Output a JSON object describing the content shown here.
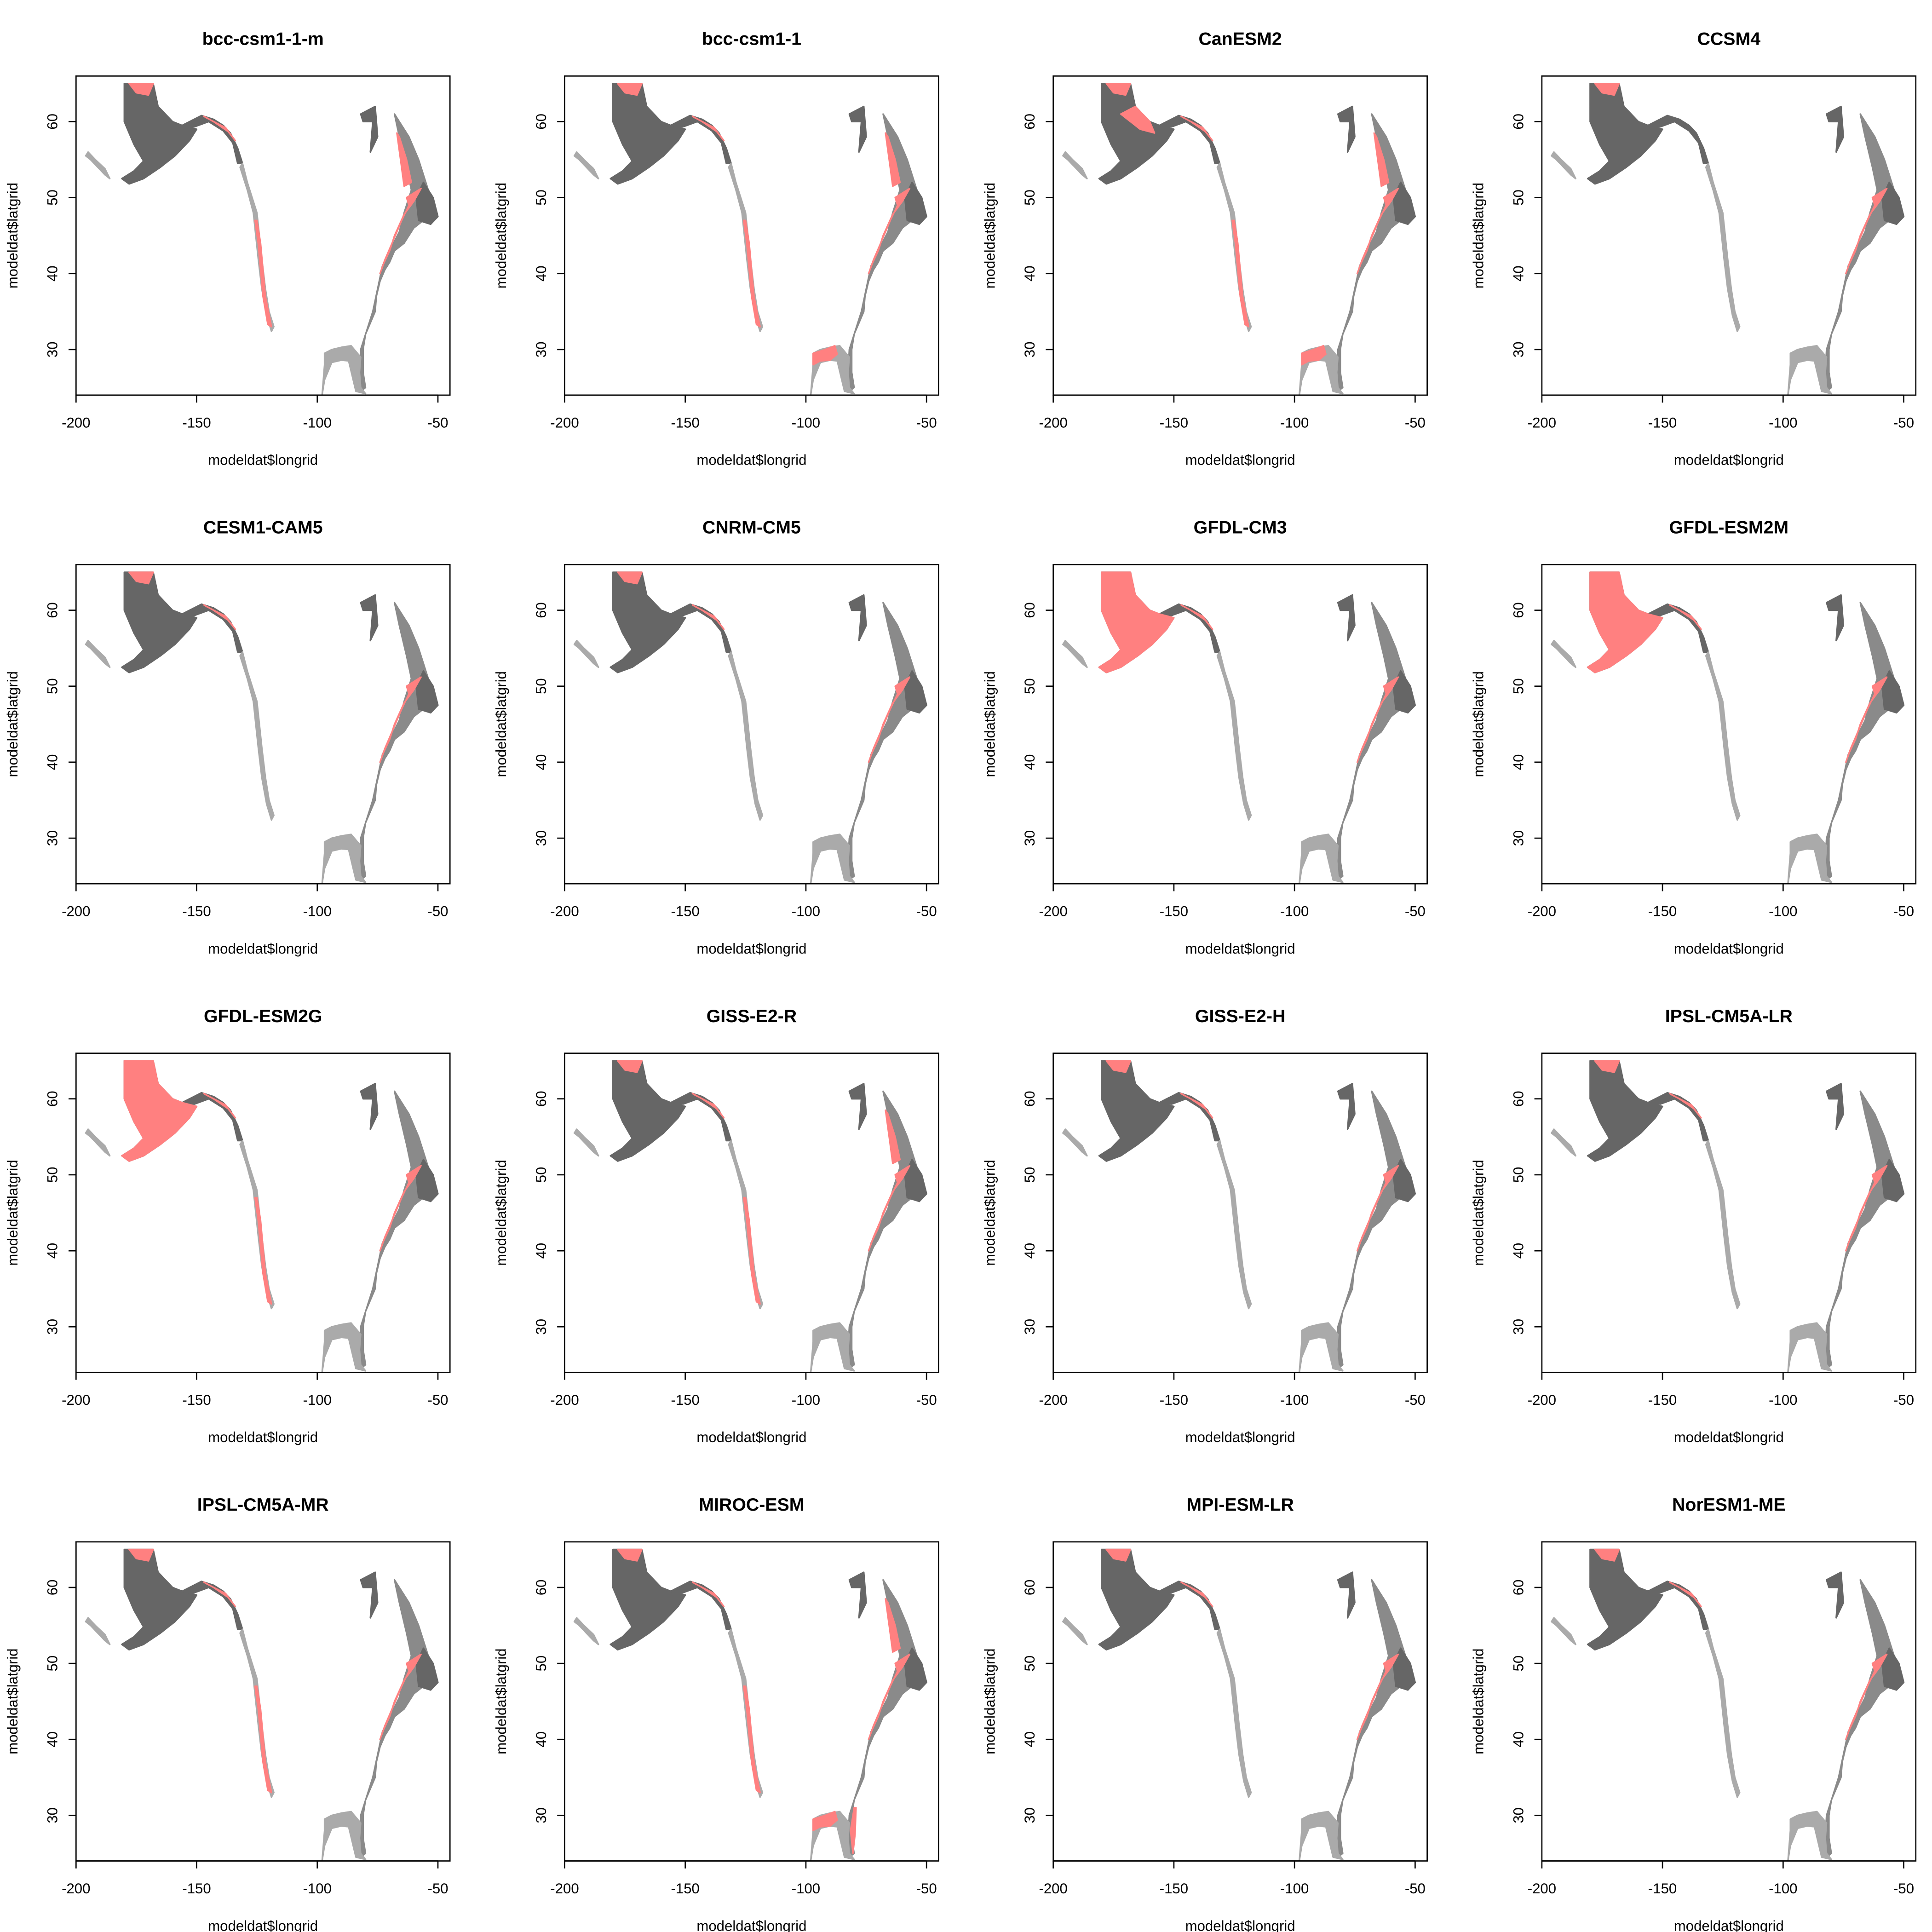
{
  "chart_data": {
    "type": "scatter",
    "xlabel": "modeldat$longrid",
    "ylabel": "modeldat$latgrid",
    "xlim": [
      -200,
      -45
    ],
    "ylim": [
      24,
      66
    ],
    "x_ticks": [
      -200,
      -150,
      -100,
      -50
    ],
    "y_ticks": [
      30,
      40,
      50,
      60
    ],
    "colors": {
      "base_dark": "#666666",
      "base_light": "#aaaaaa",
      "highlight": "#ff8080"
    },
    "panels": [
      {
        "title": "bcc-csm1-1-m",
        "highlight": [
          "pac_coast_n",
          "pac_coast_s",
          "atl_edge",
          "atl_north",
          "bering_n"
        ]
      },
      {
        "title": "bcc-csm1-1",
        "highlight": [
          "pac_coast_n",
          "pac_coast_s",
          "atl_edge",
          "atl_north",
          "bering_n",
          "gulf"
        ]
      },
      {
        "title": "CanESM2",
        "highlight": [
          "pac_coast_n",
          "pac_coast_s",
          "atl_edge",
          "atl_north",
          "bering_n",
          "gulf",
          "bering_e"
        ]
      },
      {
        "title": "CCSM4",
        "highlight": [
          "atl_edge",
          "bering_n"
        ]
      },
      {
        "title": "CESM1-CAM5",
        "highlight": [
          "atl_edge",
          "bering_n",
          "pac_coast_n"
        ]
      },
      {
        "title": "CNRM-CM5",
        "highlight": [
          "atl_edge",
          "bering_n",
          "pac_coast_n"
        ]
      },
      {
        "title": "GFDL-CM3",
        "highlight": [
          "bering_full",
          "atl_edge",
          "pac_coast_n"
        ]
      },
      {
        "title": "GFDL-ESM2M",
        "highlight": [
          "bering_full",
          "atl_edge",
          "pac_coast_n"
        ]
      },
      {
        "title": "GFDL-ESM2G",
        "highlight": [
          "bering_full",
          "atl_edge",
          "pac_coast_n",
          "pac_coast_s"
        ]
      },
      {
        "title": "GISS-E2-R",
        "highlight": [
          "atl_edge",
          "bering_n",
          "pac_coast_n",
          "pac_coast_s",
          "atl_north"
        ]
      },
      {
        "title": "GISS-E2-H",
        "highlight": [
          "atl_edge",
          "bering_n",
          "pac_coast_n"
        ]
      },
      {
        "title": "IPSL-CM5A-LR",
        "highlight": [
          "atl_edge",
          "bering_n",
          "pac_coast_n"
        ]
      },
      {
        "title": "IPSL-CM5A-MR",
        "highlight": [
          "atl_edge",
          "bering_n",
          "pac_coast_n",
          "pac_coast_s"
        ]
      },
      {
        "title": "MIROC-ESM",
        "highlight": [
          "atl_edge",
          "bering_n",
          "pac_coast_n",
          "pac_coast_s",
          "atl_north",
          "gulf",
          "atl_south"
        ]
      },
      {
        "title": "MPI-ESM-LR",
        "highlight": [
          "atl_edge",
          "bering_n",
          "pac_coast_n"
        ]
      },
      {
        "title": "NorESM1-ME",
        "highlight": [
          "atl_edge",
          "bering_n",
          "pac_coast_n"
        ]
      }
    ],
    "regions": {
      "bering_full": [
        [
          -180,
          65
        ],
        [
          -168,
          65
        ],
        [
          -166,
          62
        ],
        [
          -160,
          60
        ],
        [
          -156,
          59.5
        ],
        [
          -150,
          59
        ],
        [
          -153,
          57.5
        ],
        [
          -159,
          55.5
        ],
        [
          -165,
          54
        ],
        [
          -172,
          52.5
        ],
        [
          -178,
          51.8
        ],
        [
          -181,
          52.5
        ],
        [
          -176,
          53.5
        ],
        [
          -172,
          54.8
        ],
        [
          -176,
          57
        ],
        [
          -180,
          60
        ]
      ],
      "bering_n": [
        [
          -178,
          65
        ],
        [
          -168,
          65
        ],
        [
          -170,
          63.5
        ],
        [
          -175,
          63.8
        ]
      ],
      "bering_e": [
        [
          -172,
          61
        ],
        [
          -164,
          59
        ],
        [
          -158,
          58.5
        ],
        [
          -160,
          60
        ],
        [
          -166,
          62
        ]
      ],
      "pac_coast_n": [
        [
          -146,
          60.5
        ],
        [
          -138,
          59.2
        ],
        [
          -134,
          57.5
        ],
        [
          -137,
          58.7
        ],
        [
          -143,
          60
        ],
        [
          -147,
          60.7
        ]
      ],
      "pac_coast_s": [
        [
          -125,
          47
        ],
        [
          -123.5,
          44
        ],
        [
          -121.5,
          37
        ],
        [
          -119,
          33
        ],
        [
          -120.5,
          33.3
        ],
        [
          -122.5,
          37
        ],
        [
          -124.5,
          44
        ],
        [
          -125.8,
          47
        ]
      ],
      "atl_edge": [
        [
          -63,
          50
        ],
        [
          -57,
          51.2
        ],
        [
          -60,
          49.5
        ],
        [
          -64,
          47.8
        ],
        [
          -68,
          45
        ],
        [
          -70,
          43
        ],
        [
          -72.5,
          41.3
        ],
        [
          -74,
          40
        ],
        [
          -72,
          41.8
        ],
        [
          -69,
          44
        ],
        [
          -65,
          47
        ],
        [
          -62,
          49
        ]
      ],
      "atl_north": [
        [
          -66,
          58
        ],
        [
          -63,
          55
        ],
        [
          -61,
          52
        ],
        [
          -64,
          51.5
        ],
        [
          -65.5,
          55
        ],
        [
          -67,
          58.5
        ]
      ],
      "gulf": [
        [
          -97,
          29.5
        ],
        [
          -92,
          30
        ],
        [
          -88,
          30.5
        ],
        [
          -87,
          29.4
        ],
        [
          -90,
          28.6
        ],
        [
          -94,
          28.5
        ],
        [
          -97,
          28
        ]
      ],
      "atl_south": [
        [
          -80,
          31
        ],
        [
          -81.5,
          28
        ],
        [
          -80.5,
          25
        ],
        [
          -79.6,
          27.5
        ],
        [
          -79.2,
          31
        ]
      ]
    },
    "base": {
      "bering": [
        [
          -180,
          65
        ],
        [
          -168,
          65
        ],
        [
          -166,
          62
        ],
        [
          -160,
          60
        ],
        [
          -156,
          59.5
        ],
        [
          -150,
          59
        ],
        [
          -153,
          57.5
        ],
        [
          -159,
          55.5
        ],
        [
          -165,
          54
        ],
        [
          -172,
          52.5
        ],
        [
          -178,
          51.8
        ],
        [
          -181,
          52.5
        ],
        [
          -176,
          53.5
        ],
        [
          -172,
          54.8
        ],
        [
          -176,
          57
        ],
        [
          -180,
          60
        ]
      ],
      "gulf_alaska": [
        [
          -156,
          59.5
        ],
        [
          -148,
          60.8
        ],
        [
          -143,
          60.3
        ],
        [
          -139,
          59.5
        ],
        [
          -136,
          58.5
        ],
        [
          -133,
          56.5
        ],
        [
          -131,
          54.5
        ],
        [
          -133,
          54.5
        ],
        [
          -135,
          57.2
        ],
        [
          -139,
          58.8
        ],
        [
          -145,
          60
        ],
        [
          -151,
          59.3
        ]
      ],
      "pac_coast": [
        [
          -131,
          54.5
        ],
        [
          -129,
          52
        ],
        [
          -127,
          50
        ],
        [
          -125,
          48
        ],
        [
          -124,
          45
        ],
        [
          -123,
          42
        ],
        [
          -121.5,
          38
        ],
        [
          -120,
          35
        ],
        [
          -118,
          33
        ],
        [
          -119,
          32.4
        ],
        [
          -121,
          34.5
        ],
        [
          -123,
          38
        ],
        [
          -124.5,
          42
        ],
        [
          -125.5,
          45
        ],
        [
          -126.5,
          48
        ],
        [
          -129,
          51
        ],
        [
          -132,
          54
        ]
      ],
      "aleutian_w": [
        [
          -196,
          55.5
        ],
        [
          -194,
          55
        ],
        [
          -191,
          54
        ],
        [
          -188,
          53
        ],
        [
          -186,
          52.5
        ],
        [
          -188,
          53.8
        ],
        [
          -192,
          55
        ],
        [
          -195,
          56
        ]
      ],
      "hudson": [
        [
          -82,
          61
        ],
        [
          -76,
          62
        ],
        [
          -75,
          58
        ],
        [
          -78,
          56
        ],
        [
          -77,
          60
        ],
        [
          -81,
          60
        ]
      ],
      "labrador": [
        [
          -68,
          61
        ],
        [
          -62,
          58
        ],
        [
          -58,
          55
        ],
        [
          -54,
          51
        ],
        [
          -52,
          47
        ],
        [
          -53,
          46.5
        ],
        [
          -56,
          47
        ],
        [
          -60,
          46
        ],
        [
          -64,
          44
        ],
        [
          -68,
          43
        ],
        [
          -70,
          41.5
        ],
        [
          -72,
          40.5
        ],
        [
          -74,
          39
        ],
        [
          -75.5,
          37
        ],
        [
          -76,
          35
        ],
        [
          -78,
          33.5
        ],
        [
          -80,
          32
        ],
        [
          -81,
          30
        ],
        [
          -81,
          27
        ],
        [
          -80,
          25
        ],
        [
          -82,
          24.5
        ],
        [
          -82.5,
          27
        ],
        [
          -82,
          30
        ],
        [
          -79,
          33
        ],
        [
          -77,
          35
        ],
        [
          -75,
          38
        ],
        [
          -73,
          41
        ],
        [
          -70,
          43
        ],
        [
          -66,
          45.5
        ],
        [
          -64,
          48
        ],
        [
          -61,
          51
        ],
        [
          -63,
          54
        ],
        [
          -66,
          58
        ]
      ],
      "newfoundland": [
        [
          -56,
          52
        ],
        [
          -52,
          50
        ],
        [
          -50,
          47.5
        ],
        [
          -53,
          46.5
        ],
        [
          -58,
          47
        ],
        [
          -59,
          50
        ]
      ],
      "gulf_mexico": [
        [
          -97,
          29.5
        ],
        [
          -94,
          30
        ],
        [
          -90,
          30.3
        ],
        [
          -86,
          30.5
        ],
        [
          -82,
          29
        ],
        [
          -82.5,
          27
        ],
        [
          -82,
          25
        ],
        [
          -80,
          24.2
        ],
        [
          -84,
          24.5
        ],
        [
          -87,
          28.5
        ],
        [
          -90,
          28.6
        ],
        [
          -94,
          28.3
        ],
        [
          -97,
          26
        ],
        [
          -98,
          24
        ],
        [
          -97,
          28
        ]
      ]
    }
  }
}
